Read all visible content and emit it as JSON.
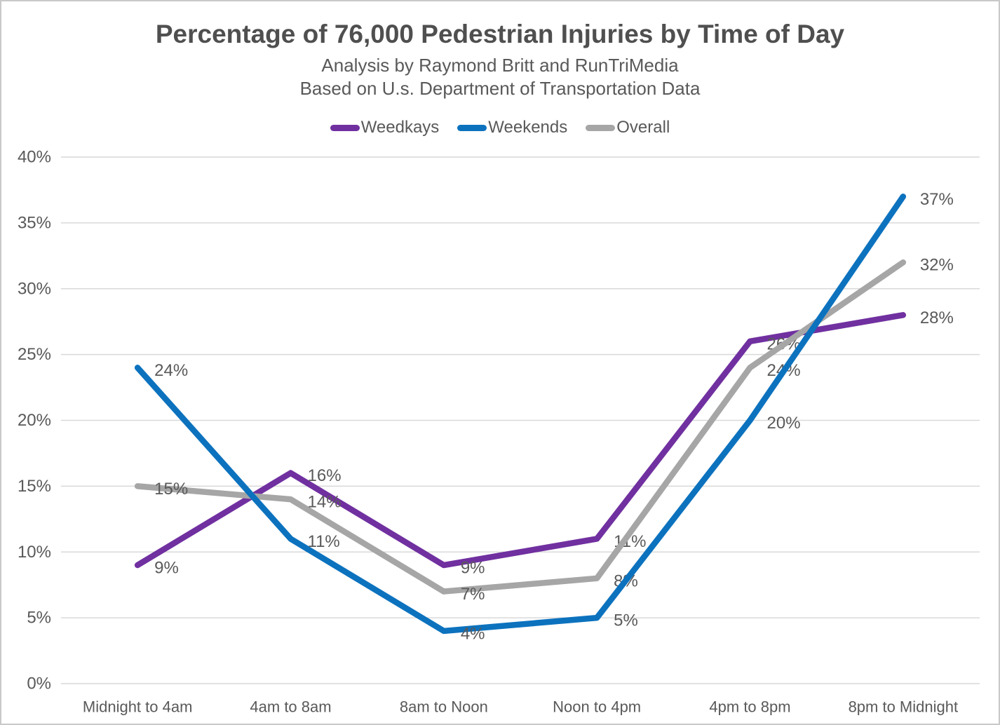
{
  "chart_data": {
    "type": "line",
    "title": "Percentage of 76,000 Pedestrian Injuries by Time of Day",
    "subtitle_line1": "Analysis by Raymond Britt and RunTriMedia",
    "subtitle_line2": "Based on U.s. Department of Transportation Data",
    "categories": [
      "Midnight to 4am",
      "4am to 8am",
      "8am to Noon",
      "Noon to 4pm",
      "4pm to 8pm",
      "8pm to Midnight"
    ],
    "series": [
      {
        "name": "Weedkays",
        "color": "#7030A0",
        "values": [
          9,
          16,
          9,
          11,
          26,
          28
        ]
      },
      {
        "name": "Weekends",
        "color": "#0C72BE",
        "values": [
          24,
          11,
          4,
          5,
          20,
          37
        ]
      },
      {
        "name": "Overall",
        "color": "#A6A6A6",
        "values": [
          15,
          14,
          7,
          8,
          24,
          32
        ]
      }
    ],
    "draw_order": [
      0,
      2,
      1
    ],
    "data_label_suffix": "%",
    "ylim": [
      0,
      40
    ],
    "ytick_step": 5,
    "ytick_labels": [
      "0%",
      "5%",
      "10%",
      "15%",
      "20%",
      "25%",
      "30%",
      "35%",
      "40%"
    ],
    "xlabel": "",
    "ylabel": "",
    "grid": true,
    "legend_position": "top"
  },
  "colors": {
    "grid": "#D9D9D9",
    "axis_text": "#595959",
    "data_label_text": "#595959",
    "title_text": "#4F4F4F",
    "frame_border": "#C9C9C9"
  }
}
